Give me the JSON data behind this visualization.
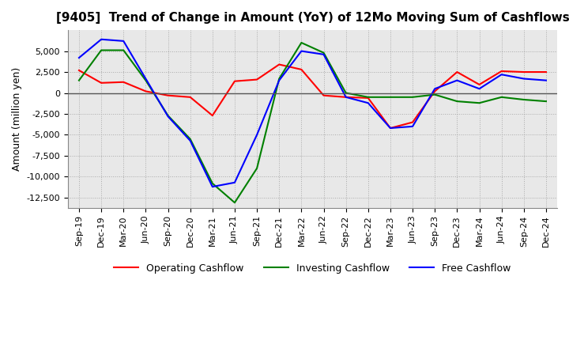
{
  "title": "[9405]  Trend of Change in Amount (YoY) of 12Mo Moving Sum of Cashflows",
  "ylabel": "Amount (million yen)",
  "x_labels": [
    "Sep-19",
    "Dec-19",
    "Mar-20",
    "Jun-20",
    "Sep-20",
    "Dec-20",
    "Mar-21",
    "Jun-21",
    "Sep-21",
    "Dec-21",
    "Mar-22",
    "Jun-22",
    "Sep-22",
    "Dec-22",
    "Mar-23",
    "Jun-23",
    "Sep-23",
    "Dec-23",
    "Mar-24",
    "Jun-24",
    "Sep-24",
    "Dec-24"
  ],
  "operating": [
    2700,
    1200,
    1300,
    200,
    -300,
    -500,
    -2700,
    1400,
    1600,
    3400,
    2800,
    -300,
    -500,
    -600,
    -4200,
    -3500,
    200,
    2500,
    1000,
    2600,
    2500,
    2500
  ],
  "investing": [
    1500,
    5100,
    5100,
    1500,
    -2700,
    -5500,
    -10800,
    -13100,
    -9000,
    1700,
    6000,
    4800,
    0,
    -500,
    -500,
    -500,
    -200,
    -1000,
    -1200,
    -500,
    -800,
    -1000
  ],
  "free": [
    4200,
    6400,
    6200,
    1700,
    -2800,
    -5700,
    -11200,
    -10700,
    -5000,
    1500,
    5000,
    4600,
    -500,
    -1200,
    -4200,
    -4000,
    500,
    1500,
    500,
    2200,
    1700,
    1500
  ],
  "ylim": [
    -13700,
    7500
  ],
  "yticks": [
    5000,
    2500,
    0,
    -2500,
    -5000,
    -7500,
    -10000,
    -12500
  ],
  "line_colors": {
    "operating": "#FF0000",
    "investing": "#008000",
    "free": "#0000FF"
  },
  "plot_bg_color": "#E8E8E8",
  "fig_bg_color": "#FFFFFF",
  "grid_color": "#AAAAAA",
  "zero_line_color": "#555555",
  "title_fontsize": 11,
  "axis_fontsize": 9,
  "tick_fontsize": 8,
  "legend_fontsize": 9
}
